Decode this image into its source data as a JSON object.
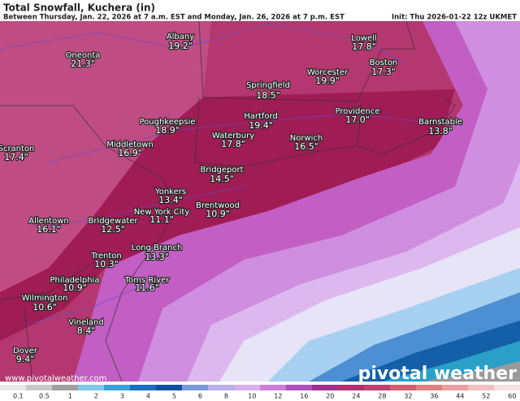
{
  "header": {
    "title": "Total Snowfall, Kuchera (in)",
    "subtitle": "Between Thursday, Jan. 22, 2026 at 7 a.m. EST and Monday, Jan. 26, 2026 at 7 p.m. EST",
    "init": "Init: Thu 2026-01-22 12z UKMET"
  },
  "cities": [
    {
      "name": "Albany",
      "value": "19.2\""
    },
    {
      "name": "Oneonta",
      "value": "21.3\""
    },
    {
      "name": "Lowell",
      "value": "17.8\""
    },
    {
      "name": "Boston",
      "value": "17.3\""
    },
    {
      "name": "Worcester",
      "value": "19.9\""
    },
    {
      "name": "Springfield",
      "value": "18.5\""
    },
    {
      "name": "Hartford",
      "value": "19.4\""
    },
    {
      "name": "Providence",
      "value": "17.0\""
    },
    {
      "name": "Barnstable",
      "value": "13.8\""
    },
    {
      "name": "Poughkeepsie",
      "value": "18.9\""
    },
    {
      "name": "Waterbury",
      "value": "17.8\""
    },
    {
      "name": "Norwich",
      "value": "16.5\""
    },
    {
      "name": "Scranton",
      "value": "17.4\""
    },
    {
      "name": "Middletown",
      "value": "16.9\""
    },
    {
      "name": "Bridgeport",
      "value": "14.5\""
    },
    {
      "name": "Yonkers",
      "value": "13.4\""
    },
    {
      "name": "Brentwood",
      "value": "10.9\""
    },
    {
      "name": "New York City",
      "value": "11.1\""
    },
    {
      "name": "Allentown",
      "value": "16.1\""
    },
    {
      "name": "Bridgewater",
      "value": "12.5\""
    },
    {
      "name": "Long Branch",
      "value": "13.3\""
    },
    {
      "name": "Trenton",
      "value": "10.3\""
    },
    {
      "name": "Philadelphia",
      "value": "10.9\""
    },
    {
      "name": "Toms River",
      "value": "11.6\""
    },
    {
      "name": "Wilmington",
      "value": "10.6\""
    },
    {
      "name": "Vineland",
      "value": "8.4\""
    },
    {
      "name": "Dover",
      "value": "9.4\""
    }
  ],
  "legend": {
    "ticks": [
      "0.1",
      "0.5",
      "1",
      "2",
      "3",
      "4",
      "5",
      "6",
      "8",
      "10",
      "12",
      "16",
      "20",
      "24",
      "28",
      "32",
      "36",
      "44",
      "52",
      "60"
    ]
  },
  "watermark": "www.pivotalweather.com",
  "logo": "pivotal weather"
}
